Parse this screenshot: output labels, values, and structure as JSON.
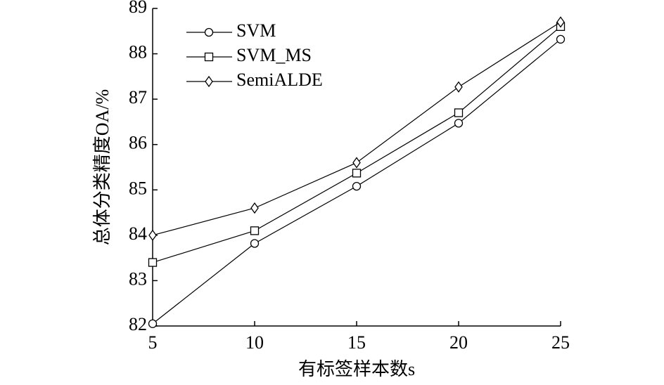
{
  "chart_data": {
    "type": "line",
    "xlabel": "有标签样本数s",
    "ylabel": "总体分类精度OA/%",
    "x": [
      5,
      10,
      15,
      20,
      25
    ],
    "xlim": [
      5,
      25
    ],
    "xticks": [
      5,
      10,
      15,
      20,
      25
    ],
    "ylim": [
      82,
      89
    ],
    "yticks": [
      82,
      83,
      84,
      85,
      86,
      87,
      88,
      89
    ],
    "legend": "upper-left",
    "series": [
      {
        "name": "SVM",
        "color": "#000000",
        "marker": "circle",
        "values": [
          82.05,
          83.82,
          85.08,
          86.47,
          88.32
        ]
      },
      {
        "name": "SVM_MS",
        "color": "#000000",
        "marker": "square",
        "values": [
          83.4,
          84.1,
          85.37,
          86.7,
          88.6
        ]
      },
      {
        "name": "SemiALDE",
        "color": "#000000",
        "marker": "diamond",
        "values": [
          84.0,
          84.6,
          85.6,
          87.27,
          88.7
        ]
      }
    ]
  }
}
